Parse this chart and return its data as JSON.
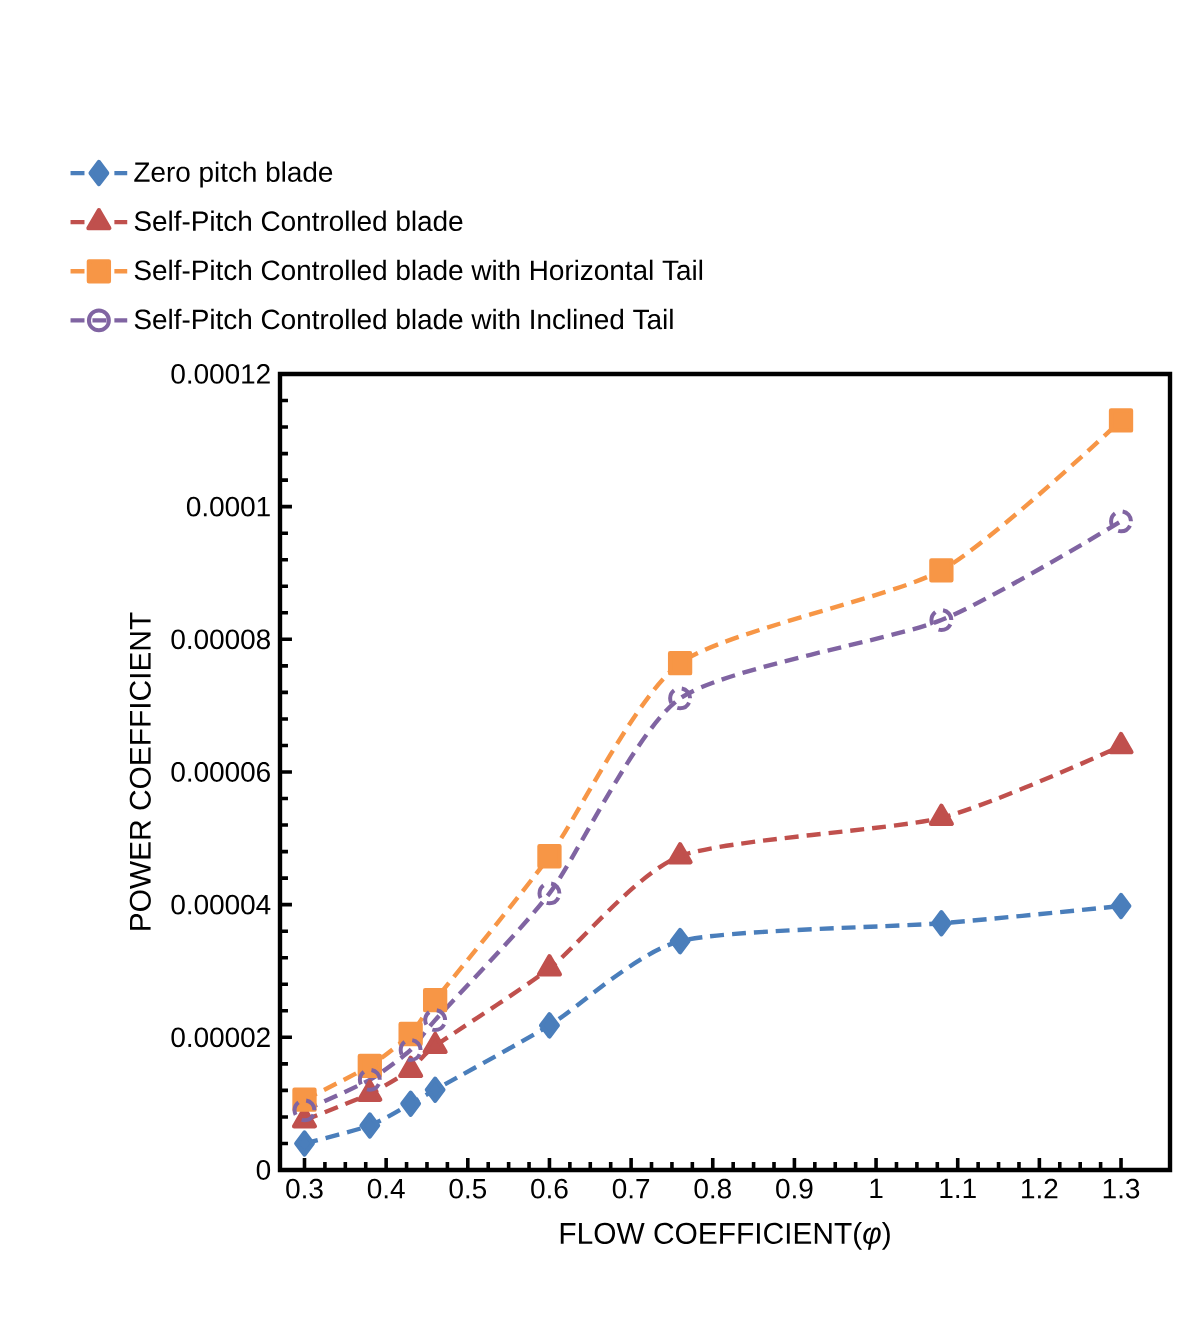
{
  "chart_data": {
    "type": "line",
    "xlabel": "FLOW COEFFICIENT(*φ*)",
    "ylabel": "POWER COEFFICIENT",
    "x": [
      0.3,
      0.38,
      0.43,
      0.46,
      0.6,
      0.76,
      1.08,
      1.3
    ],
    "series": [
      {
        "name": "Zero pitch blade",
        "color": "#4a7ebb",
        "marker": "diamond",
        "values": [
          4e-06,
          6.7e-06,
          1e-05,
          1.21e-05,
          2.18e-05,
          3.45e-05,
          3.72e-05,
          3.98e-05
        ]
      },
      {
        "name": "Self-Pitch Controlled blade",
        "color": "#c0504d",
        "marker": "triangle",
        "values": [
          7.5e-06,
          1.15e-05,
          1.51e-05,
          1.87e-05,
          3.04e-05,
          4.73e-05,
          5.31e-05,
          6.39e-05
        ]
      },
      {
        "name": "Self-Pitch Controlled blade with Horizontal Tail",
        "color": "#f79646",
        "marker": "square",
        "values": [
          1.06e-05,
          1.57e-05,
          2.05e-05,
          2.56e-05,
          4.73e-05,
          7.64e-05,
          9.04e-05,
          0.000113
        ]
      },
      {
        "name": "Self-Pitch Controlled blade with Inclined Tail",
        "color": "#8064a2",
        "marker": "circle",
        "values": [
          9e-06,
          1.36e-05,
          1.81e-05,
          2.26e-05,
          4.17e-05,
          7.11e-05,
          8.29e-05,
          9.78e-05
        ]
      }
    ],
    "xlim": [
      0.27,
      1.36
    ],
    "ylim": [
      0,
      0.00012
    ],
    "xticks": [
      0.3,
      0.4,
      0.5,
      0.6,
      0.7,
      0.8,
      0.9,
      1,
      1.1,
      1.2,
      1.3
    ],
    "yticks": [
      {
        "value": 0,
        "label": "0"
      },
      {
        "value": 2e-05,
        "label": "0.00002"
      },
      {
        "value": 4e-05,
        "label": "0.00004"
      },
      {
        "value": 6e-05,
        "label": "0.00006"
      },
      {
        "value": 8e-05,
        "label": "0.00008"
      },
      {
        "value": 0.0001,
        "label": "0.0001"
      },
      {
        "value": 0.00012,
        "label": "0.00012"
      }
    ],
    "grid": false,
    "legend": "top",
    "line_style": "dashed"
  }
}
